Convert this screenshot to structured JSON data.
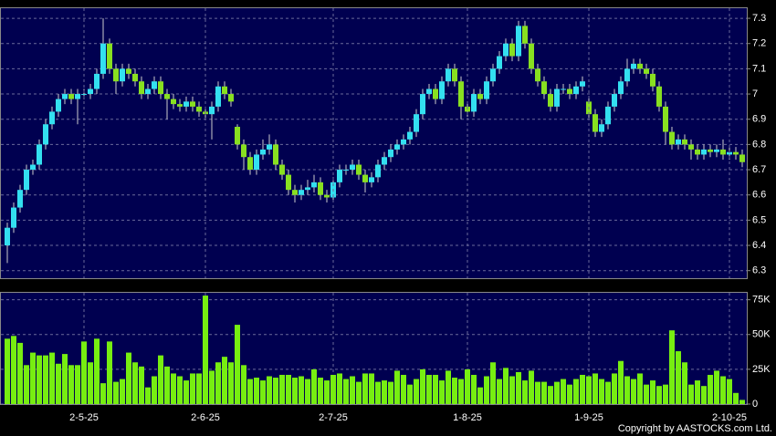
{
  "chart_data": [
    {
      "type": "candlestick",
      "up_color": "#33e0f0",
      "down_color": "#88e020",
      "grid": true,
      "ylim": [
        6.27,
        7.34
      ],
      "yticks": [
        6.3,
        6.4,
        6.5,
        6.6,
        6.7,
        6.8,
        6.9,
        7,
        7.1,
        7.2,
        7.3
      ],
      "open": [
        6.4,
        6.47,
        6.55,
        6.62,
        6.7,
        6.72,
        6.8,
        6.88,
        6.93,
        6.98,
        7.0,
        6.98,
        7.0,
        7.0,
        7.02,
        7.08,
        7.2,
        7.1,
        7.05,
        7.1,
        7.08,
        7.05,
        7.0,
        7.02,
        7.05,
        7.0,
        6.98,
        6.96,
        6.95,
        6.97,
        6.95,
        6.93,
        6.92,
        6.95,
        7.03,
        7.0,
        6.87,
        6.8,
        6.75,
        6.7,
        6.76,
        6.78,
        6.8,
        6.72,
        6.68,
        6.62,
        6.6,
        6.62,
        6.63,
        6.65,
        6.6,
        6.59,
        6.65,
        6.7,
        6.7,
        6.72,
        6.68,
        6.65,
        6.67,
        6.72,
        6.75,
        6.78,
        6.8,
        6.82,
        6.85,
        6.92,
        7.0,
        7.02,
        6.98,
        7.05,
        7.1,
        7.05,
        6.95,
        6.93,
        7.0,
        6.98,
        7.05,
        7.1,
        7.15,
        7.2,
        7.15,
        7.27,
        7.2,
        7.1,
        7.05,
        7.0,
        6.95,
        7.02,
        7.02,
        7.0,
        7.03,
        6.97,
        6.92,
        6.85,
        6.88,
        6.95,
        7.0,
        7.05,
        7.1,
        7.12,
        7.1,
        7.08,
        7.03,
        6.95,
        6.85,
        6.8,
        6.82,
        6.8,
        6.78,
        6.76,
        6.78,
        6.77,
        6.78,
        6.76,
        6.77,
        6.76
      ],
      "high": [
        6.49,
        6.57,
        6.64,
        6.72,
        6.74,
        6.82,
        6.9,
        6.95,
        7.0,
        7.02,
        7.02,
        7.02,
        7.02,
        7.04,
        7.1,
        7.3,
        7.22,
        7.12,
        7.12,
        7.12,
        7.1,
        7.07,
        7.04,
        7.07,
        7.07,
        7.02,
        7.0,
        6.98,
        6.99,
        6.99,
        6.97,
        6.95,
        6.97,
        7.05,
        7.05,
        7.02,
        6.88,
        6.82,
        6.77,
        6.78,
        6.82,
        6.84,
        6.82,
        6.74,
        6.7,
        6.64,
        6.64,
        6.66,
        6.68,
        6.67,
        6.62,
        6.67,
        6.72,
        6.72,
        6.74,
        6.74,
        6.7,
        6.69,
        6.74,
        6.77,
        6.8,
        6.82,
        6.84,
        6.87,
        6.94,
        7.02,
        7.04,
        7.04,
        7.07,
        7.12,
        7.12,
        7.07,
        6.97,
        7.02,
        7.02,
        7.07,
        7.12,
        7.17,
        7.22,
        7.22,
        7.29,
        7.29,
        7.22,
        7.12,
        7.07,
        7.02,
        7.04,
        7.04,
        7.04,
        7.05,
        7.07,
        6.99,
        6.94,
        6.9,
        6.97,
        7.02,
        7.07,
        7.14,
        7.14,
        7.14,
        7.12,
        7.1,
        7.05,
        6.97,
        6.87,
        6.84,
        6.84,
        6.82,
        6.8,
        6.8,
        6.8,
        6.8,
        6.82,
        6.79,
        6.79,
        6.78
      ],
      "low": [
        6.33,
        6.45,
        6.53,
        6.6,
        6.68,
        6.7,
        6.78,
        6.86,
        6.91,
        6.96,
        6.96,
        6.88,
        6.98,
        6.98,
        7.0,
        7.06,
        7.08,
        7.0,
        7.03,
        7.06,
        7.03,
        6.98,
        6.98,
        7.0,
        6.98,
        6.9,
        6.94,
        6.93,
        6.93,
        6.93,
        6.91,
        6.9,
        6.82,
        6.93,
        6.98,
        6.95,
        6.78,
        6.7,
        6.68,
        6.68,
        6.74,
        6.76,
        6.7,
        6.66,
        6.6,
        6.57,
        6.58,
        6.6,
        6.61,
        6.58,
        6.57,
        6.57,
        6.63,
        6.68,
        6.68,
        6.66,
        6.61,
        6.63,
        6.65,
        6.7,
        6.73,
        6.76,
        6.78,
        6.8,
        6.83,
        6.9,
        6.98,
        6.96,
        6.96,
        7.03,
        7.03,
        6.9,
        6.91,
        6.91,
        6.96,
        6.96,
        7.03,
        7.08,
        7.13,
        7.13,
        7.13,
        7.18,
        7.08,
        7.03,
        6.98,
        6.93,
        6.93,
        7.0,
        6.98,
        6.98,
        7.01,
        6.9,
        6.83,
        6.83,
        6.86,
        6.93,
        6.98,
        7.03,
        7.08,
        7.08,
        7.06,
        7.01,
        6.93,
        6.8,
        6.78,
        6.78,
        6.78,
        6.74,
        6.74,
        6.74,
        6.75,
        6.75,
        6.74,
        6.74,
        6.74,
        6.71
      ],
      "close": [
        6.47,
        6.55,
        6.62,
        6.7,
        6.72,
        6.8,
        6.88,
        6.93,
        6.98,
        7.0,
        6.98,
        7.0,
        7.0,
        7.02,
        7.08,
        7.2,
        7.1,
        7.05,
        7.1,
        7.08,
        7.05,
        7.0,
        7.02,
        7.05,
        7.0,
        6.98,
        6.96,
        6.95,
        6.97,
        6.95,
        6.93,
        6.92,
        6.95,
        7.03,
        7.0,
        6.97,
        6.8,
        6.75,
        6.7,
        6.76,
        6.78,
        6.8,
        6.72,
        6.68,
        6.62,
        6.6,
        6.62,
        6.63,
        6.65,
        6.6,
        6.59,
        6.65,
        6.7,
        6.7,
        6.72,
        6.68,
        6.65,
        6.67,
        6.72,
        6.75,
        6.78,
        6.8,
        6.82,
        6.85,
        6.92,
        7.0,
        7.02,
        6.98,
        7.05,
        7.1,
        7.05,
        6.95,
        6.93,
        7.0,
        6.98,
        7.05,
        7.1,
        7.15,
        7.2,
        7.15,
        7.27,
        7.2,
        7.1,
        7.05,
        7.0,
        6.95,
        7.02,
        7.02,
        7.0,
        7.03,
        7.05,
        6.92,
        6.85,
        6.88,
        6.95,
        7.0,
        7.05,
        7.1,
        7.12,
        7.1,
        7.08,
        7.03,
        6.95,
        6.85,
        6.8,
        6.82,
        6.8,
        6.78,
        6.76,
        6.78,
        6.77,
        6.78,
        6.76,
        6.77,
        6.76,
        6.73
      ]
    },
    {
      "type": "bar",
      "color": "#77ee11",
      "grid": true,
      "ylim": [
        0,
        80000
      ],
      "yticks": [
        0,
        {
          "value": 25000,
          "label": "25K"
        },
        {
          "value": 50000,
          "label": "50K"
        },
        {
          "value": 75000,
          "label": "75K"
        }
      ],
      "categories": [
        null,
        null,
        null,
        null,
        null,
        null,
        null,
        null,
        null,
        null,
        null,
        null,
        "2-5-25",
        null,
        null,
        null,
        null,
        null,
        null,
        null,
        null,
        null,
        null,
        null,
        null,
        null,
        null,
        null,
        null,
        null,
        null,
        "2-6-25",
        null,
        null,
        null,
        null,
        null,
        null,
        null,
        null,
        null,
        null,
        null,
        null,
        null,
        null,
        null,
        null,
        null,
        null,
        null,
        "2-7-25",
        null,
        null,
        null,
        null,
        null,
        null,
        null,
        null,
        null,
        null,
        null,
        null,
        null,
        null,
        null,
        null,
        null,
        null,
        null,
        null,
        "1-8-25",
        null,
        null,
        null,
        null,
        null,
        null,
        null,
        null,
        null,
        null,
        null,
        null,
        null,
        null,
        null,
        null,
        null,
        null,
        "1-9-25",
        null,
        null,
        null,
        null,
        null,
        null,
        null,
        null,
        null,
        null,
        null,
        null,
        null,
        null,
        null,
        null,
        null,
        null,
        null,
        null,
        null,
        "2-10-25",
        null,
        null
      ],
      "values": [
        47000,
        49000,
        44000,
        28000,
        37000,
        35000,
        35000,
        37000,
        29000,
        36000,
        28000,
        28000,
        45000,
        30000,
        47000,
        15000,
        45000,
        16000,
        18000,
        37000,
        30000,
        27000,
        12000,
        20000,
        35000,
        27000,
        22000,
        20000,
        17000,
        22000,
        22000,
        78000,
        24000,
        30000,
        34000,
        30000,
        57000,
        28000,
        18000,
        19000,
        17000,
        20000,
        19000,
        21000,
        21000,
        19000,
        20000,
        18000,
        25000,
        19000,
        17000,
        21000,
        22000,
        18000,
        20000,
        16000,
        22000,
        22000,
        16000,
        17000,
        16000,
        24000,
        21000,
        14000,
        18000,
        25000,
        21000,
        21000,
        17000,
        24000,
        19000,
        18000,
        25000,
        21000,
        12000,
        20000,
        30000,
        18000,
        26000,
        20000,
        23000,
        17000,
        24000,
        16000,
        16000,
        13000,
        16000,
        18000,
        14000,
        18000,
        21000,
        20000,
        22000,
        18000,
        16000,
        22000,
        31000,
        20000,
        18000,
        22000,
        14000,
        17000,
        13000,
        14000,
        53000,
        38000,
        30000,
        14000,
        17000,
        13000,
        21000,
        24000,
        20000,
        18000,
        8000,
        3000
      ]
    }
  ],
  "footer": "Copyright by AASTOCKS.com Ltd."
}
